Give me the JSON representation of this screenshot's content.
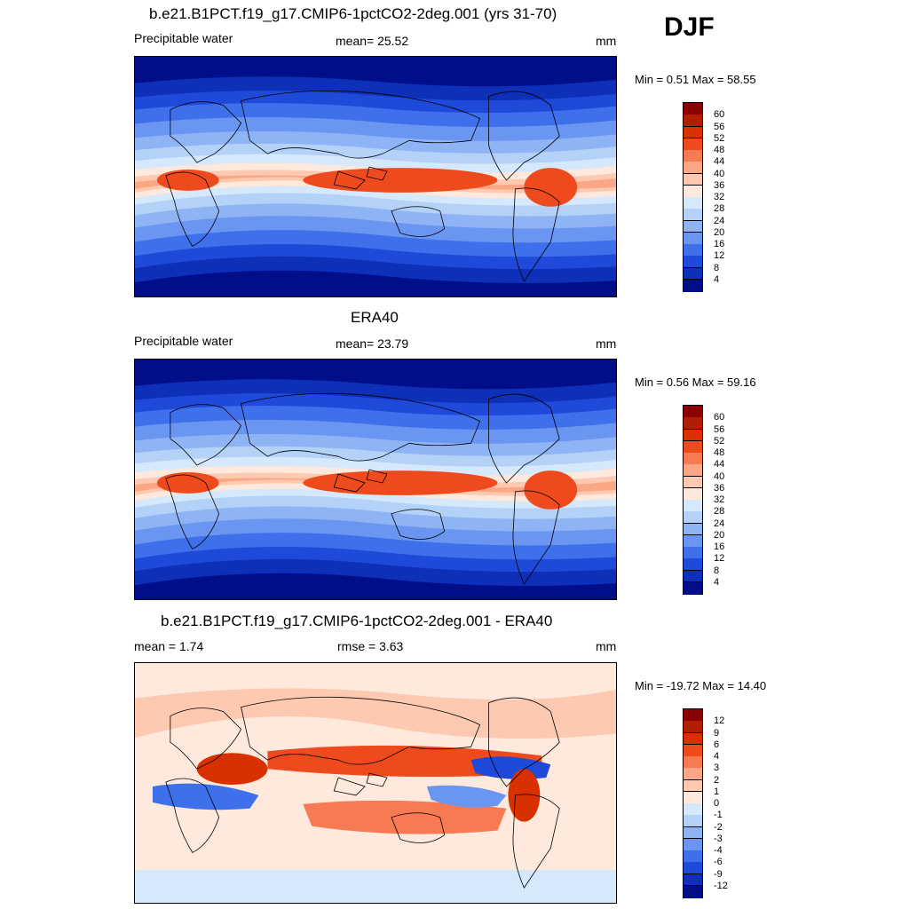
{
  "season": "DJF",
  "panels": [
    {
      "title": "b.e21.B1PCT.f19_g17.CMIP6-1pctCO2-2deg.001 (yrs 31-70)",
      "left_label": "Precipitable water",
      "center_label": "mean=  25.52",
      "units": "mm",
      "minmax": "Min =   0.51 Max =  58.55",
      "map_kind": "field",
      "colorbar": {
        "labels": [
          "60",
          "56",
          "52",
          "48",
          "44",
          "40",
          "36",
          "32",
          "28",
          "24",
          "20",
          "16",
          "12",
          "8",
          "4"
        ],
        "colors": [
          "#8b0000",
          "#b21f00",
          "#d93000",
          "#ee4a1e",
          "#f77a52",
          "#fba684",
          "#fdc9b0",
          "#fee9dc",
          "#d6e8fb",
          "#b4d1f8",
          "#8fb4f5",
          "#6a95f0",
          "#3d70ea",
          "#1f49d9",
          "#0e2fb8",
          "#000e8a"
        ]
      }
    },
    {
      "title": "ERA40",
      "left_label": "Precipitable water",
      "center_label": "mean=  23.79",
      "units": "mm",
      "minmax": "Min =   0.56 Max =  59.16",
      "map_kind": "field",
      "colorbar": {
        "labels": [
          "60",
          "56",
          "52",
          "48",
          "44",
          "40",
          "36",
          "32",
          "28",
          "24",
          "20",
          "16",
          "12",
          "8",
          "4"
        ],
        "colors": [
          "#8b0000",
          "#b21f00",
          "#d93000",
          "#ee4a1e",
          "#f77a52",
          "#fba684",
          "#fdc9b0",
          "#fee9dc",
          "#d6e8fb",
          "#b4d1f8",
          "#8fb4f5",
          "#6a95f0",
          "#3d70ea",
          "#1f49d9",
          "#0e2fb8",
          "#000e8a"
        ]
      }
    },
    {
      "title": "b.e21.B1PCT.f19_g17.CMIP6-1pctCO2-2deg.001 - ERA40",
      "left_label": "mean =   1.74",
      "center_label": "rmse =   3.63",
      "units": "mm",
      "minmax": "Min = -19.72 Max =  14.40",
      "map_kind": "diff",
      "colorbar": {
        "labels": [
          "12",
          "9",
          "6",
          "4",
          "3",
          "2",
          "1",
          "0",
          "-1",
          "-2",
          "-3",
          "-4",
          "-6",
          "-9",
          "-12"
        ],
        "colors": [
          "#8b0000",
          "#b21f00",
          "#d93000",
          "#ee4a1e",
          "#f77a52",
          "#fba684",
          "#fdc9b0",
          "#fee9dc",
          "#d6e8fb",
          "#b4d1f8",
          "#8fb4f5",
          "#6a95f0",
          "#3d70ea",
          "#1f49d9",
          "#0e2fb8",
          "#000e8a"
        ]
      }
    }
  ]
}
